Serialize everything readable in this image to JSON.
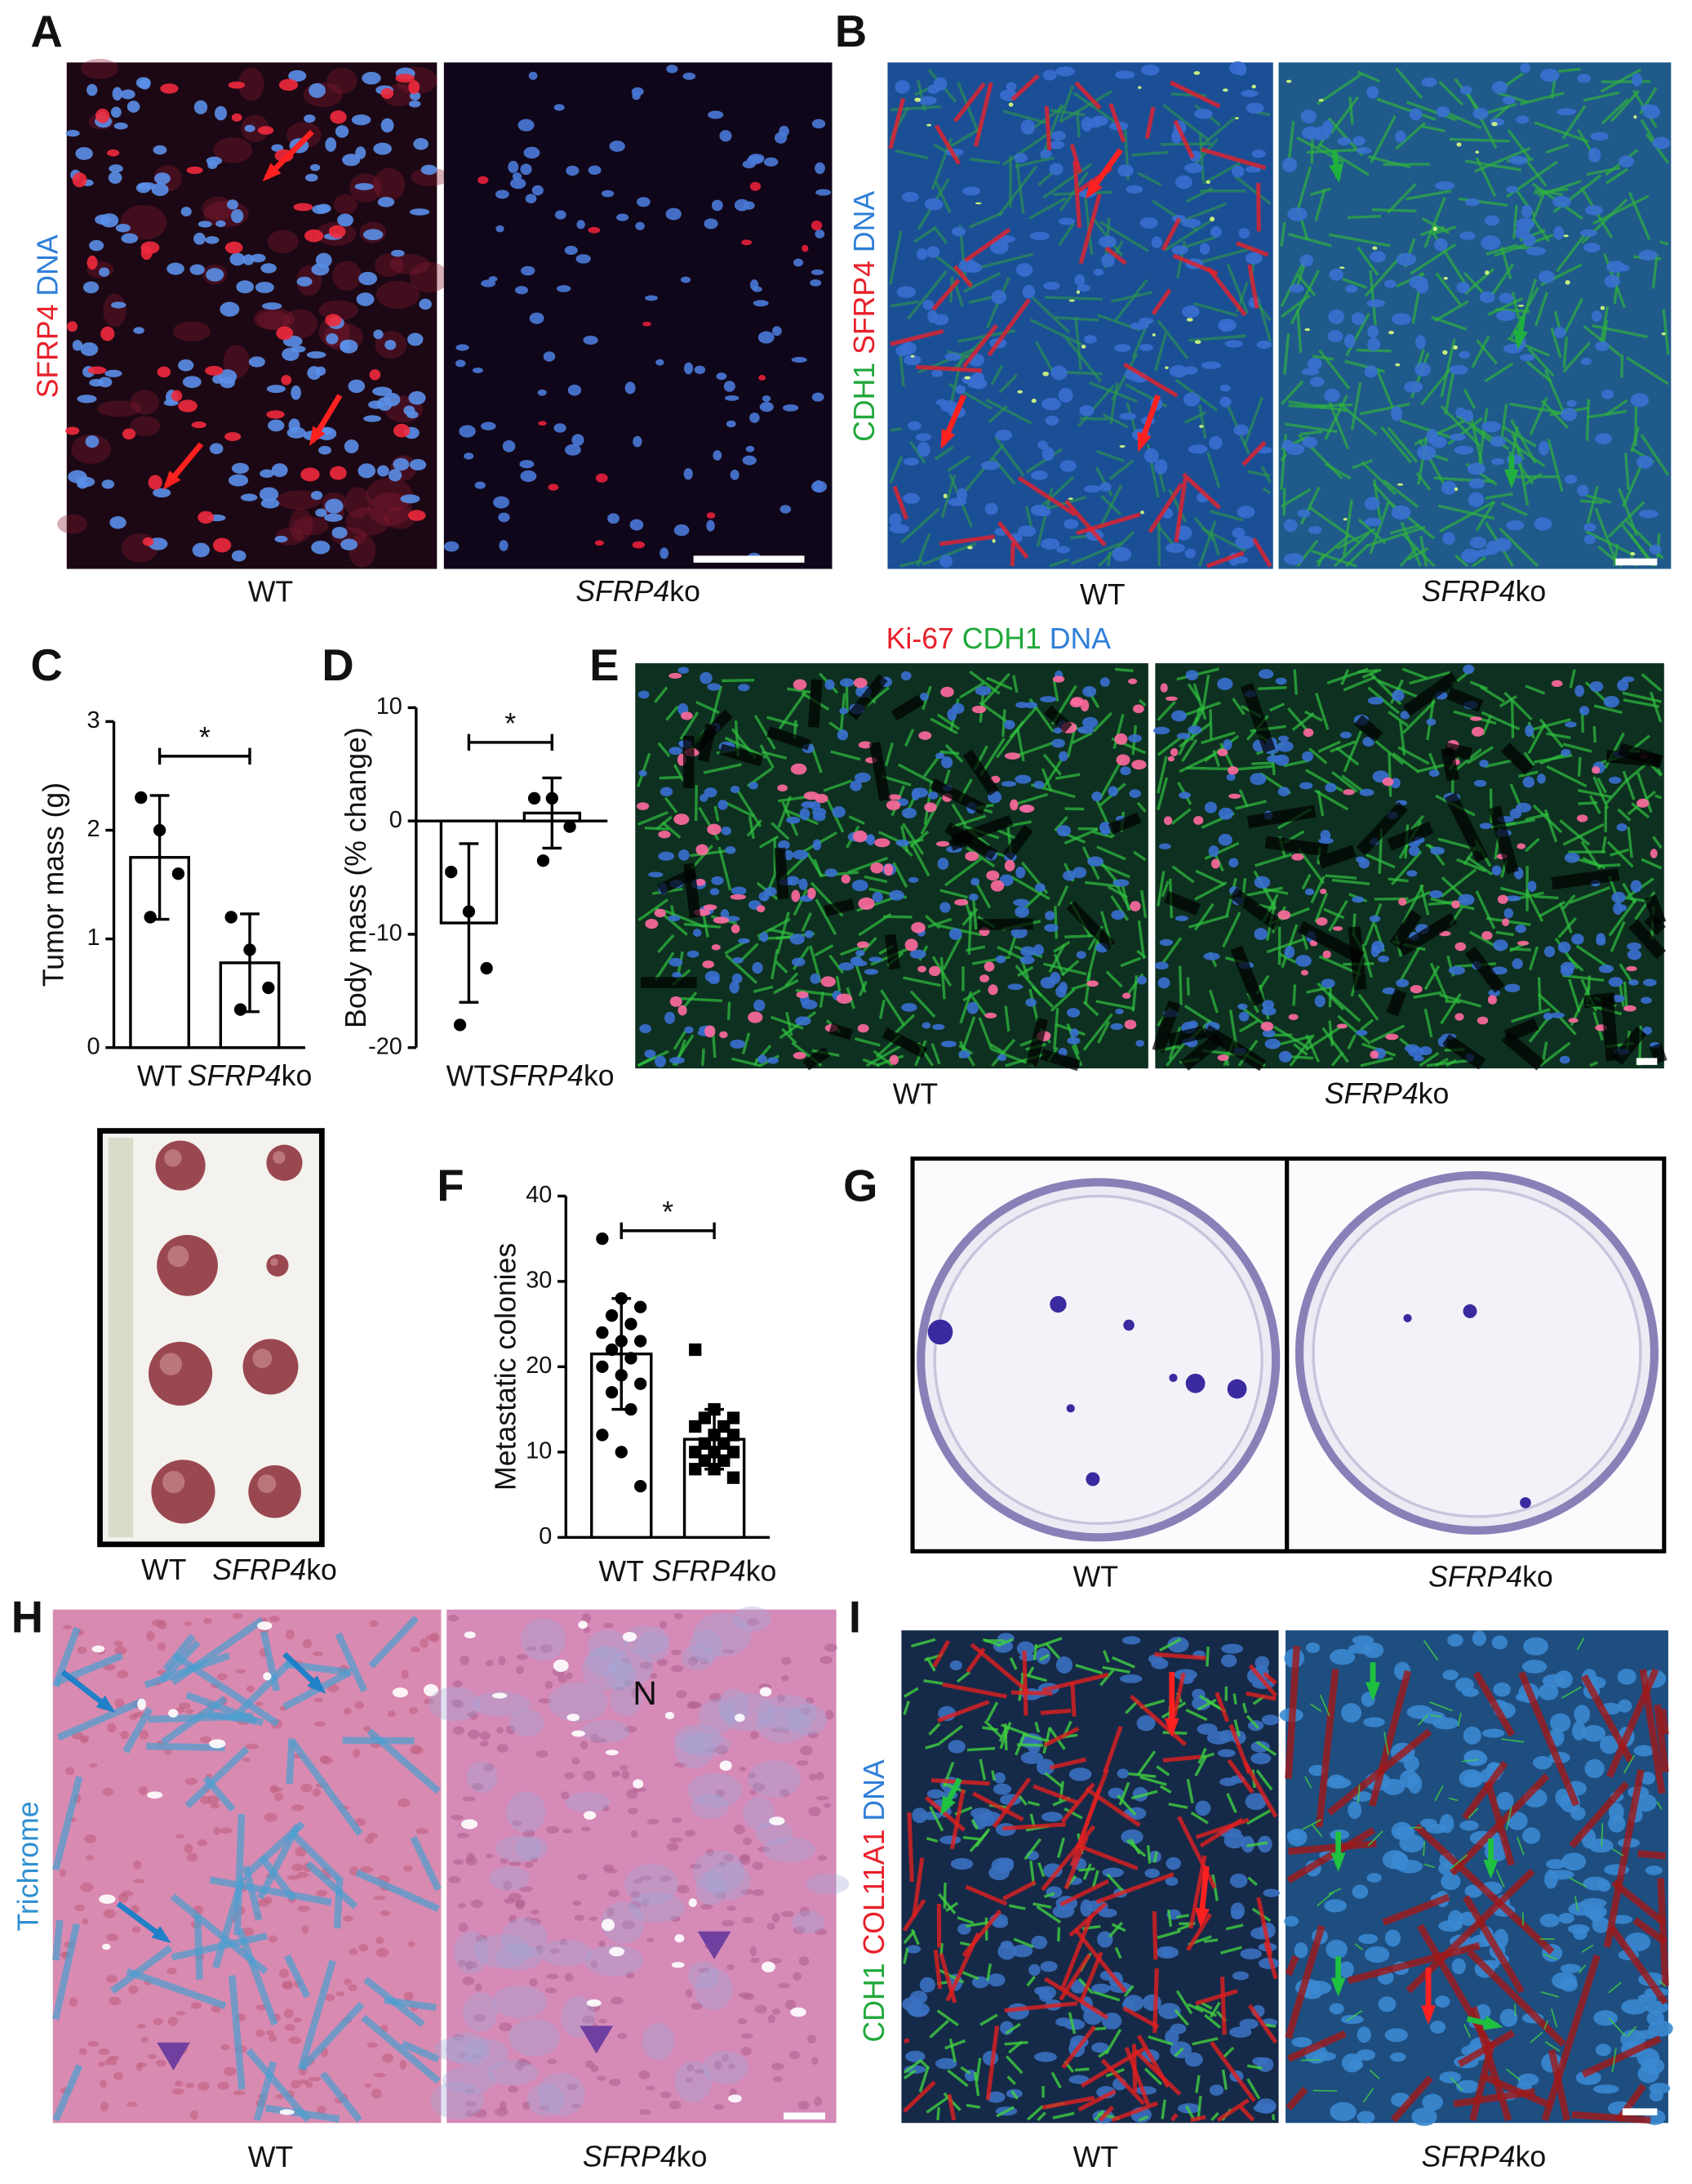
{
  "panels": {
    "A": {
      "letter": "A",
      "stain": [
        {
          "text": "SFRP4",
          "color": "#e8202a"
        },
        {
          "text": "DNA",
          "color": "#2f7fd8"
        }
      ],
      "captions": [
        "WT",
        "SFRP4ko"
      ]
    },
    "B": {
      "letter": "B",
      "stain": [
        {
          "text": "CDH1",
          "color": "#1fa83a"
        },
        {
          "text": "SFRP4",
          "color": "#e8202a"
        },
        {
          "text": "DNA",
          "color": "#2f7fd8"
        }
      ],
      "captions": [
        "WT",
        "SFRP4ko"
      ]
    },
    "C": {
      "letter": "C",
      "photo_captions": [
        "WT",
        "SFRP4ko"
      ]
    },
    "D": {
      "letter": "D"
    },
    "E": {
      "letter": "E",
      "stain": [
        {
          "text": "Ki-67",
          "color": "#e8202a"
        },
        {
          "text": "CDH1",
          "color": "#1fa83a"
        },
        {
          "text": "DNA",
          "color": "#2f7fd8"
        }
      ],
      "captions": [
        "WT",
        "SFRP4ko"
      ]
    },
    "F": {
      "letter": "F"
    },
    "G": {
      "letter": "G",
      "captions": [
        "WT",
        "SFRP4ko"
      ]
    },
    "H": {
      "letter": "H",
      "stain": [
        {
          "text": "Trichrome",
          "color": "#2f8fd0"
        }
      ],
      "annotation": "N",
      "captions": [
        "WT",
        "SFRP4ko"
      ]
    },
    "I": {
      "letter": "I",
      "stain": [
        {
          "text": "CDH1",
          "color": "#1fa83a"
        },
        {
          "text": "COL11A1",
          "color": "#e8202a"
        },
        {
          "text": "DNA",
          "color": "#2f7fd8"
        }
      ],
      "captions": [
        "WT",
        "SFRP4ko"
      ]
    }
  },
  "chart_data": [
    {
      "type": "bar",
      "ylabel": "Tumor mass (g)",
      "categories": [
        "WT",
        "SFRP4ko"
      ],
      "values": [
        1.75,
        0.78
      ],
      "errors": [
        0.57,
        0.45
      ],
      "points": [
        [
          2.3,
          2.0,
          1.6,
          1.2
        ],
        [
          1.2,
          0.9,
          0.55,
          0.35
        ]
      ],
      "markers": [
        "circle",
        "circle"
      ],
      "ylim": [
        0,
        3
      ],
      "yticks": [
        0,
        1,
        2,
        3
      ],
      "significance": "*",
      "color": "#ffffff"
    },
    {
      "type": "bar",
      "ylabel": "Body mass (% change)",
      "categories": [
        "WT",
        "SFRP4ko"
      ],
      "values": [
        -9,
        0.7
      ],
      "errors": [
        7,
        3.1
      ],
      "points": [
        [
          -4.5,
          -8,
          -13,
          -18
        ],
        [
          2,
          2,
          -0.5,
          -3.5
        ]
      ],
      "markers": [
        "circle",
        "circle"
      ],
      "ylim": [
        -20,
        10
      ],
      "yticks": [
        -20,
        -10,
        0,
        10
      ],
      "significance": "*",
      "color": "#ffffff"
    },
    {
      "type": "bar",
      "ylabel": "Metastatic colonies",
      "categories": [
        "WT",
        "SFRP4ko"
      ],
      "values": [
        21.5,
        11.5
      ],
      "errors": [
        6.5,
        3.5
      ],
      "points": [
        [
          35,
          28,
          27,
          26,
          25,
          24,
          23,
          23,
          22,
          21,
          20,
          19,
          18,
          17,
          15,
          12,
          10,
          6
        ],
        [
          22,
          15,
          14,
          14,
          13,
          13,
          12,
          12,
          11,
          11,
          10,
          10,
          10,
          9,
          9,
          8,
          8,
          7
        ]
      ],
      "markers": [
        "circle",
        "square"
      ],
      "ylim": [
        0,
        40
      ],
      "yticks": [
        0,
        10,
        20,
        30,
        40
      ],
      "significance": "*",
      "color": "#ffffff"
    }
  ]
}
